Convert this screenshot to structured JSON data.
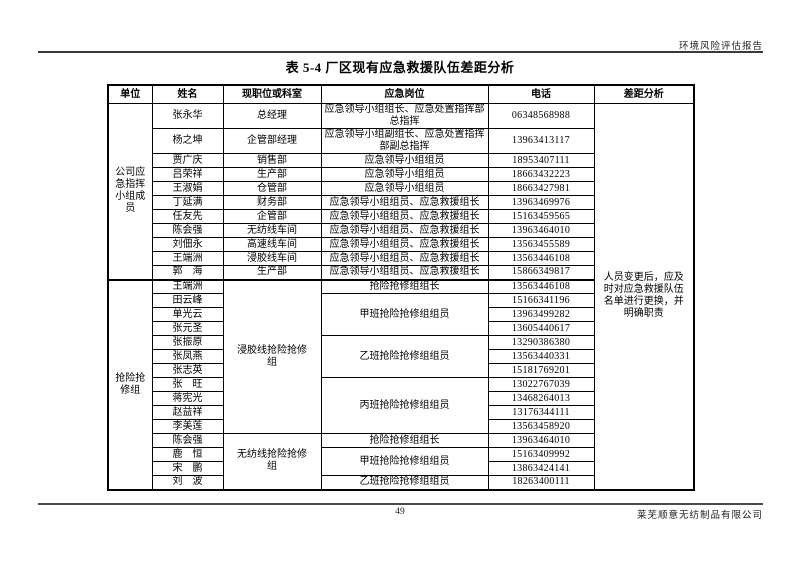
{
  "page": {
    "header_right": "环境风险评估报告",
    "title": "表 5-4 厂区现有应急救援队伍差距分析",
    "page_number": "49",
    "company_footer": "莱芜顺意无纺制品有限公司"
  },
  "colors": {
    "background": "#ffffff",
    "text": "#000000",
    "border": "#000000"
  },
  "table": {
    "headers": [
      "单位",
      "姓名",
      "现职位或科室",
      "应急岗位",
      "电话",
      "差距分析"
    ],
    "gap_analysis": {
      "text": "人员变更后，应及时对应急救援队伍名单进行更换，并明确职责",
      "rowspan": 26
    },
    "rows": [
      {
        "unit": {
          "text": "公司应急指挥小组成员",
          "span": 11
        },
        "name": "张永华",
        "dept": {
          "text": "总经理",
          "span": 1
        },
        "role": {
          "text": "应急领导小组组长、应急处置指挥部总指挥",
          "span": 1
        },
        "phone": "06348568988",
        "double": true,
        "gap": true
      },
      {
        "name": "杨之坤",
        "dept": {
          "text": "企管部经理",
          "span": 1
        },
        "role": {
          "text": "应急领导小组副组长、应急处置指挥部副总指挥",
          "span": 1
        },
        "phone": "13963413117",
        "double": true
      },
      {
        "name": "贾广庆",
        "dept": {
          "text": "销售部",
          "span": 1
        },
        "role": {
          "text": "应急领导小组组员",
          "span": 1
        },
        "phone": "18953407111"
      },
      {
        "name": "吕荣祥",
        "dept": {
          "text": "生产部",
          "span": 1
        },
        "role": {
          "text": "应急领导小组组员",
          "span": 1
        },
        "phone": "18663432223"
      },
      {
        "name": "王淑娟",
        "dept": {
          "text": "仓管部",
          "span": 1
        },
        "role": {
          "text": "应急领导小组组员",
          "span": 1
        },
        "phone": "18663427981"
      },
      {
        "name": "丁延满",
        "dept": {
          "text": "财务部",
          "span": 1
        },
        "role": {
          "text": "应急领导小组组员、应急救援组长",
          "span": 1
        },
        "phone": "13963469976"
      },
      {
        "name": "任友先",
        "dept": {
          "text": "企管部",
          "span": 1
        },
        "role": {
          "text": "应急领导小组组员、应急救援组长",
          "span": 1
        },
        "phone": "15163459565"
      },
      {
        "name": "陈会强",
        "dept": {
          "text": "无纺线车间",
          "span": 1
        },
        "role": {
          "text": "应急领导小组组员、应急救援组长",
          "span": 1
        },
        "phone": "13963464010"
      },
      {
        "name": "刘佃永",
        "dept": {
          "text": "高速线车间",
          "span": 1
        },
        "role": {
          "text": "应急领导小组组员、应急救援组长",
          "span": 1
        },
        "phone": "13563455589"
      },
      {
        "name": "王端洲",
        "dept": {
          "text": "浸胶线车间",
          "span": 1
        },
        "role": {
          "text": "应急领导小组组员、应急救援组长",
          "span": 1
        },
        "phone": "13563446108"
      },
      {
        "name": "郭　海",
        "dept": {
          "text": "生产部",
          "span": 1
        },
        "role": {
          "text": "应急领导小组组员、应急救援组长",
          "span": 1
        },
        "phone": "15866349817"
      },
      {
        "unit": {
          "text": "抢险抢修组",
          "span": 15
        },
        "name": "王端洲",
        "dept": {
          "text": "浸胶线抢险抢修组",
          "span": 11
        },
        "role": {
          "text": "抢险抢修组组长",
          "span": 1
        },
        "phone": "13563446108",
        "group_sep": true
      },
      {
        "name": "田云峰",
        "role": {
          "text": "甲班抢险抢修组组员",
          "span": 3
        },
        "phone": "15166341196"
      },
      {
        "name": "单光云",
        "phone": "13963499282"
      },
      {
        "name": "张元圣",
        "phone": "13605440617"
      },
      {
        "name": "张振原",
        "role": {
          "text": "乙班抢险抢修组组员",
          "span": 3
        },
        "phone": "13290386380"
      },
      {
        "name": "张凤燕",
        "phone": "13563440331"
      },
      {
        "name": "张志英",
        "phone": "15181769201"
      },
      {
        "name": "张　旺",
        "role": {
          "text": "丙班抢险抢修组组员",
          "span": 4
        },
        "phone": "13022767039"
      },
      {
        "name": "蒋宪光",
        "phone": "13468264013"
      },
      {
        "name": "赵益祥",
        "phone": "13176344111"
      },
      {
        "name": "李美莲",
        "phone": "13563458920"
      },
      {
        "name": "陈会强",
        "dept": {
          "text": "无纺线抢险抢修组",
          "span": 4
        },
        "role": {
          "text": "抢险抢修组组长",
          "span": 1
        },
        "phone": "13963464010"
      },
      {
        "name": "鹿　恒",
        "role": {
          "text": "甲班抢险抢修组组员",
          "span": 2
        },
        "phone": "15163409992"
      },
      {
        "name": "宋　鹏",
        "phone": "13863424141"
      },
      {
        "name": "刘　波",
        "role": {
          "text": "乙班抢险抢修组组员",
          "span": 1
        },
        "phone": "18263400111"
      }
    ]
  }
}
